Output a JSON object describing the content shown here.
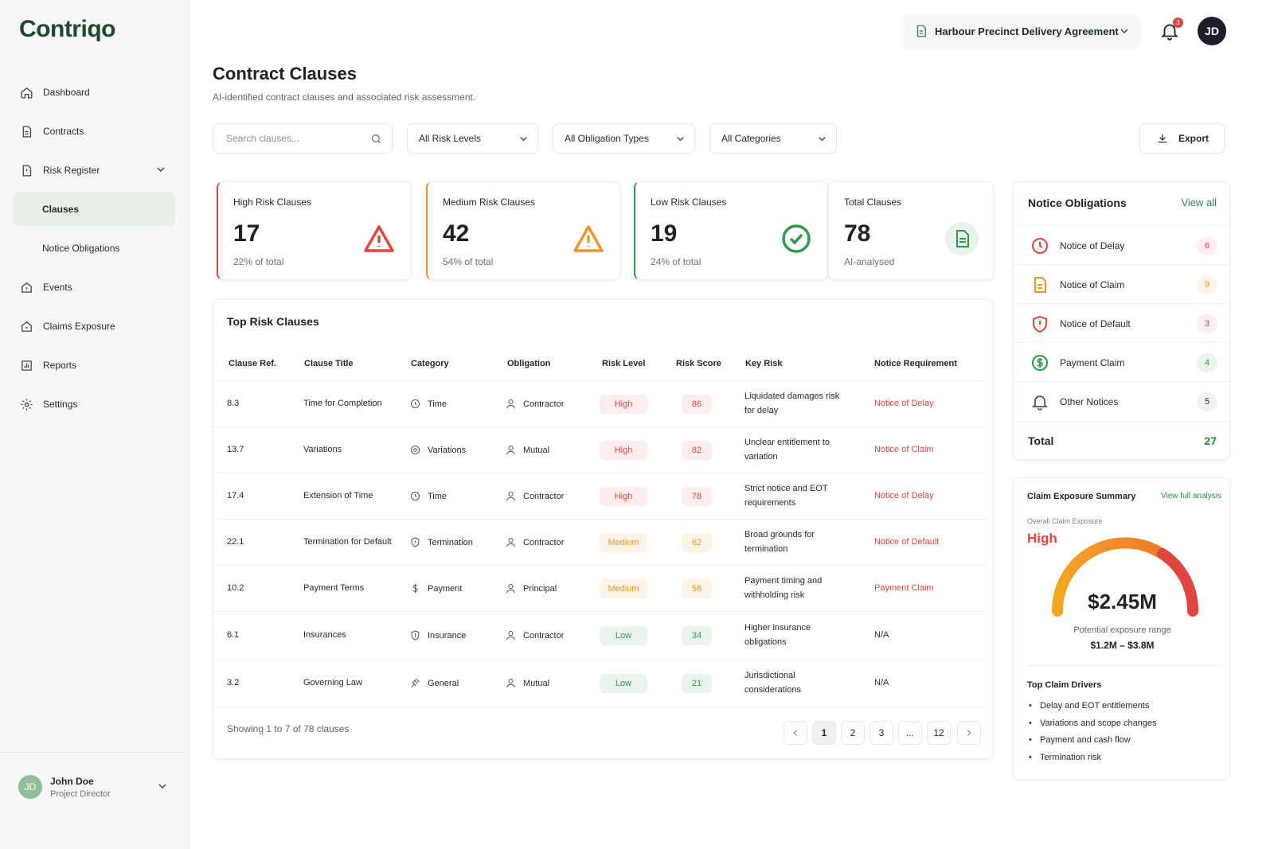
{
  "app": {
    "logo": "Contriqo"
  },
  "sidebar": {
    "items": [
      {
        "label": "Dashboard",
        "icon": "home-icon"
      },
      {
        "label": "Contracts",
        "icon": "document-icon"
      },
      {
        "label": "Risk Register",
        "icon": "risk-register-icon"
      },
      {
        "label": "Clauses"
      },
      {
        "label": "Notice Obligations"
      },
      {
        "label": "Events",
        "icon": "events-icon"
      },
      {
        "label": "Claims Exposure",
        "icon": "claims-icon"
      },
      {
        "label": "Reports",
        "icon": "reports-icon"
      },
      {
        "label": "Settings",
        "icon": "gear-icon"
      }
    ],
    "user": {
      "initials": "JD",
      "name": "John Doe",
      "role": "Project Director"
    }
  },
  "topbar": {
    "contract": "Harbour Precinct Delivery Agreement",
    "notifications": "3",
    "avatar": "JD"
  },
  "header": {
    "title": "Contract Clauses",
    "subtitle": "AI-identified contract clauses and associated risk assessment."
  },
  "filters": {
    "search_placeholder": "Search clauses...",
    "risk": "All Risk Levels",
    "obligation": "All Obligation Types",
    "category": "All Categories",
    "export": "Export"
  },
  "stats": [
    {
      "label": "High Risk Clauses",
      "value": "17",
      "note": "22% of total"
    },
    {
      "label": "Medium Risk Clauses",
      "value": "42",
      "note": "54% of total"
    },
    {
      "label": "Low Risk Clauses",
      "value": "19",
      "note": "24% of total"
    },
    {
      "label": "Total Clauses",
      "value": "78",
      "note": "AI-analysed"
    }
  ],
  "table": {
    "title": "Top Risk Clauses",
    "headers": [
      "Clause Ref.",
      "Clause Title",
      "Category",
      "Obligation",
      "Risk Level",
      "Risk Score",
      "Key Risk",
      "Notice Requirement"
    ],
    "rows": [
      {
        "ref": "8.3",
        "title": "Time for Completion",
        "category": "Time",
        "obligation": "Contractor",
        "risk": "High",
        "score": "86",
        "key_risk": "Liquidated damages risk for delay",
        "notice": "Notice of Delay"
      },
      {
        "ref": "13.7",
        "title": "Variations",
        "category": "Variations",
        "obligation": "Mutual",
        "risk": "High",
        "score": "82",
        "key_risk": "Unclear entitlement to variation",
        "notice": "Notice of Claim"
      },
      {
        "ref": "17.4",
        "title": "Extension of Time",
        "category": "Time",
        "obligation": "Contractor",
        "risk": "High",
        "score": "78",
        "key_risk": "Strict notice and EOT requirements",
        "notice": "Notice of Delay"
      },
      {
        "ref": "22.1",
        "title": "Termination for Default",
        "category": "Termination",
        "obligation": "Contractor",
        "risk": "Medium",
        "score": "62",
        "key_risk": "Broad grounds for termination",
        "notice": "Notice of Default"
      },
      {
        "ref": "10.2",
        "title": "Payment Terms",
        "category": "Payment",
        "obligation": "Principal",
        "risk": "Medium",
        "score": "58",
        "key_risk": "Payment timing and withholding risk",
        "notice": "Payment Claim"
      },
      {
        "ref": "6.1",
        "title": "Insurances",
        "category": "Insurance",
        "obligation": "Contractor",
        "risk": "Low",
        "score": "34",
        "key_risk": "Higher insurance obligations",
        "notice": "N/A"
      },
      {
        "ref": "3.2",
        "title": "Governing Law",
        "category": "General",
        "obligation": "Mutual",
        "risk": "Low",
        "score": "21",
        "key_risk": "Jurisdictional considerations",
        "notice": "N/A"
      }
    ],
    "footer": "Showing 1 to 7 of 78 clauses",
    "pages": [
      "1",
      "2",
      "3",
      "...",
      "12"
    ]
  },
  "notices": {
    "title": "Notice Obligations",
    "view_all": "View all",
    "items": [
      {
        "label": "Notice of Delay",
        "count": "6",
        "icon": "clock-icon"
      },
      {
        "label": "Notice of Claim",
        "count": "9",
        "icon": "file-icon"
      },
      {
        "label": "Notice of Default",
        "count": "3",
        "icon": "shield-alert-icon"
      },
      {
        "label": "Payment Claim",
        "count": "4",
        "icon": "dollar-icon"
      },
      {
        "label": "Other Notices",
        "count": "5",
        "icon": "bell-icon"
      }
    ],
    "total_label": "Total",
    "total": "27"
  },
  "claims": {
    "title": "Claim Exposure Summary",
    "link": "View full analysis",
    "overall_label": "Overall Claim Exposure",
    "level": "High",
    "amount": "$2.45M",
    "range_label": "Potential exposure range",
    "range": "$1.2M – $3.8M",
    "drivers_title": "Top Claim Drivers",
    "drivers": [
      "Delay and EOT entitlements",
      "Variations and scope changes",
      "Payment and cash flow",
      "Termination risk"
    ]
  },
  "colors": {
    "brand": "#1c4a2c",
    "accent_green": "#2a8a46",
    "high": "#e0463e",
    "medium": "#f2942c",
    "low": "#2f9a4f"
  }
}
